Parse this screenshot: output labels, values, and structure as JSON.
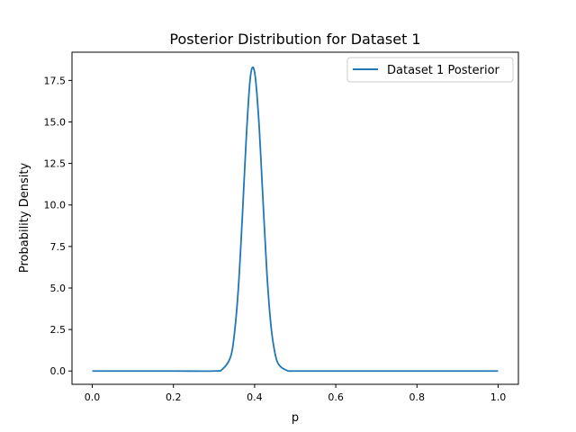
{
  "chart_data": {
    "type": "line",
    "title": "Posterior Distribution for Dataset 1",
    "xlabel": "p",
    "ylabel": "Probability Density",
    "xlim": [
      -0.05,
      1.05
    ],
    "ylim": [
      -0.8,
      19.2
    ],
    "xticks": [
      "0.0",
      "0.2",
      "0.4",
      "0.6",
      "0.8",
      "1.0"
    ],
    "xtick_values": [
      0.0,
      0.2,
      0.4,
      0.6,
      0.8,
      1.0
    ],
    "yticks": [
      "0.0",
      "2.5",
      "5.0",
      "7.5",
      "10.0",
      "12.5",
      "15.0",
      "17.5"
    ],
    "ytick_values": [
      0.0,
      2.5,
      5.0,
      7.5,
      10.0,
      12.5,
      15.0,
      17.5
    ],
    "grid": false,
    "legend": {
      "position": "top-right"
    },
    "series": [
      {
        "name": "Dataset 1 Posterior",
        "color": "#1f77b4",
        "x": [
          0.0,
          0.1,
          0.2,
          0.3,
          0.32,
          0.34,
          0.35,
          0.36,
          0.37,
          0.38,
          0.39,
          0.4,
          0.41,
          0.42,
          0.43,
          0.44,
          0.45,
          0.46,
          0.48,
          0.5,
          0.6,
          0.8,
          1.0
        ],
        "values": [
          0.0,
          0.0,
          0.0,
          0.0,
          0.1,
          0.8,
          2.2,
          5.0,
          9.4,
          14.3,
          17.8,
          18.0,
          15.2,
          10.6,
          6.0,
          2.8,
          1.1,
          0.37,
          0.03,
          0.0,
          0.0,
          0.0,
          0.0
        ]
      }
    ]
  }
}
